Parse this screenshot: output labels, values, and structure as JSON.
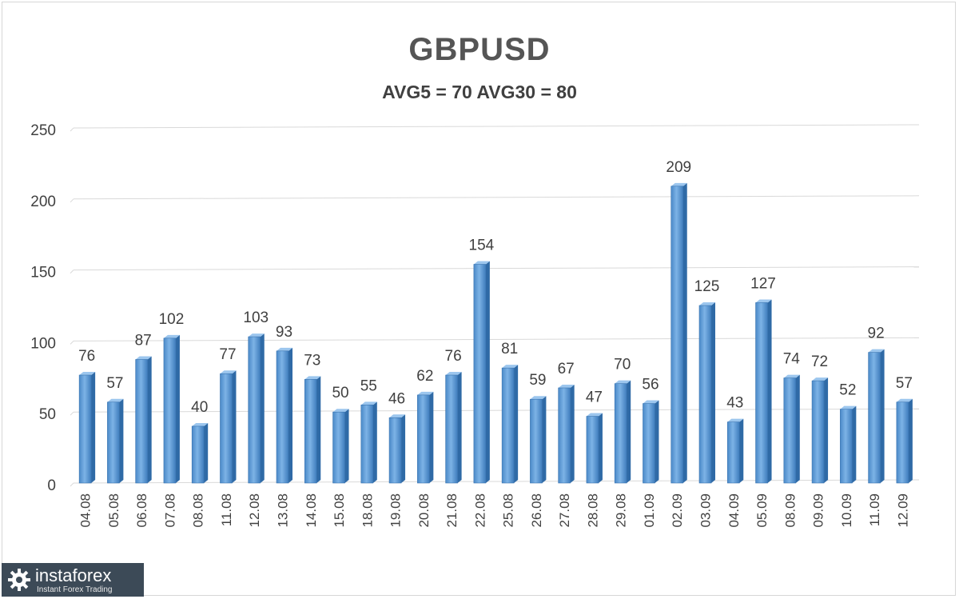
{
  "chart_data": {
    "type": "bar",
    "title": "GBPUSD",
    "subtitle": "AVG5 = 70 AVG30 = 80",
    "categories": [
      "04.08",
      "05.08",
      "06.08",
      "07.08",
      "08.08",
      "11.08",
      "12.08",
      "13.08",
      "14.08",
      "15.08",
      "18.08",
      "19.08",
      "20.08",
      "21.08",
      "22.08",
      "25.08",
      "26.08",
      "27.08",
      "28.08",
      "29.08",
      "01.09",
      "02.09",
      "03.09",
      "04.09",
      "05.09",
      "08.09",
      "09.09",
      "10.09",
      "11.09",
      "12.09"
    ],
    "values": [
      76,
      57,
      87,
      102,
      40,
      77,
      103,
      93,
      73,
      50,
      55,
      46,
      62,
      76,
      154,
      81,
      59,
      67,
      47,
      70,
      56,
      209,
      125,
      43,
      127,
      74,
      72,
      52,
      92,
      57
    ],
    "ylim": [
      0,
      250
    ],
    "yticks": [
      0,
      50,
      100,
      150,
      200,
      250
    ],
    "grid": true,
    "colors": {
      "bar": "#5b9bd5",
      "bar_dark": "#2e75b6",
      "grid": "#d9d9d9",
      "text": "#404040"
    }
  },
  "watermark": {
    "name": "instaforex",
    "tagline": "Instant Forex Trading"
  }
}
